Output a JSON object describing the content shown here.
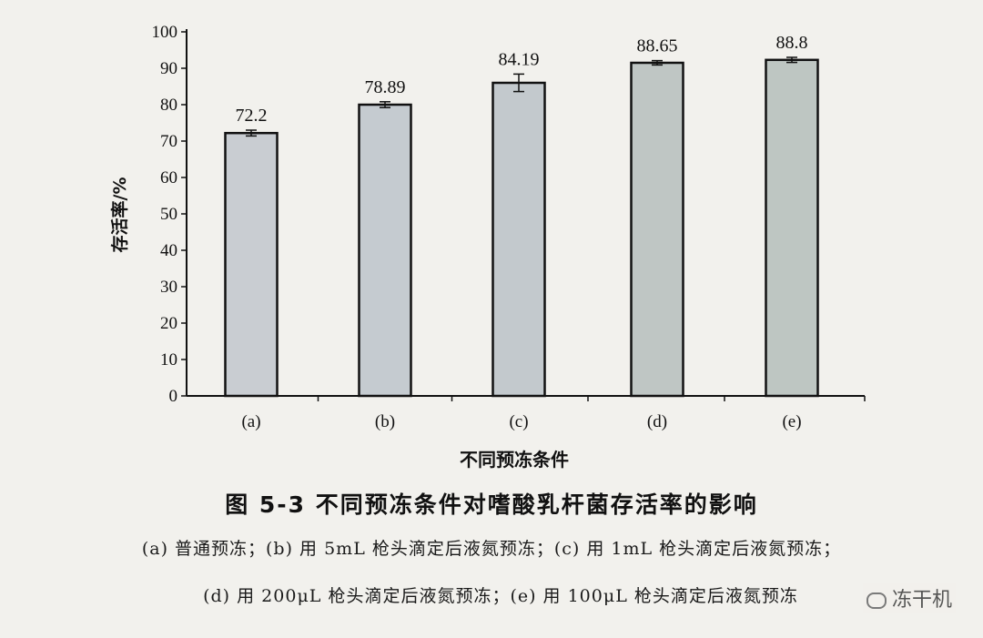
{
  "chart_data": {
    "type": "bar",
    "categories": [
      "(a)",
      "(b)",
      "(c)",
      "(d)",
      "(e)"
    ],
    "values": [
      72.2,
      78.89,
      84.19,
      88.65,
      88.8
    ],
    "bar_tops": [
      72.2,
      80,
      86,
      91.5,
      92.3
    ],
    "errors": [
      0.8,
      0.8,
      2.4,
      0.6,
      0.7
    ],
    "value_labels": [
      "72.2",
      "78.89",
      "84.19",
      "88.65",
      "88.8"
    ],
    "xlabel": "不同预冻条件",
    "ylabel": "存活率/%",
    "ylim": [
      0,
      100
    ],
    "yticks": [
      0,
      10,
      20,
      30,
      40,
      50,
      60,
      70,
      80,
      90,
      100
    ],
    "grid": false,
    "bar_colors": [
      "#c9cdd2",
      "#c5cbd0",
      "#c3c9cd",
      "#bfc6c4",
      "#bec6c2"
    ]
  },
  "caption": {
    "title": "图 5-3   不同预冻条件对嗜酸乳杆菌存活率的影响",
    "line1": "(a) 普通预冻；(b) 用 5mL 枪头滴定后液氮预冻；(c) 用 1mL 枪头滴定后液氮预冻；",
    "line2": "(d) 用 200μL 枪头滴定后液氮预冻；(e) 用 100μL 枪头滴定后液氮预冻"
  },
  "watermark": "冻干机"
}
